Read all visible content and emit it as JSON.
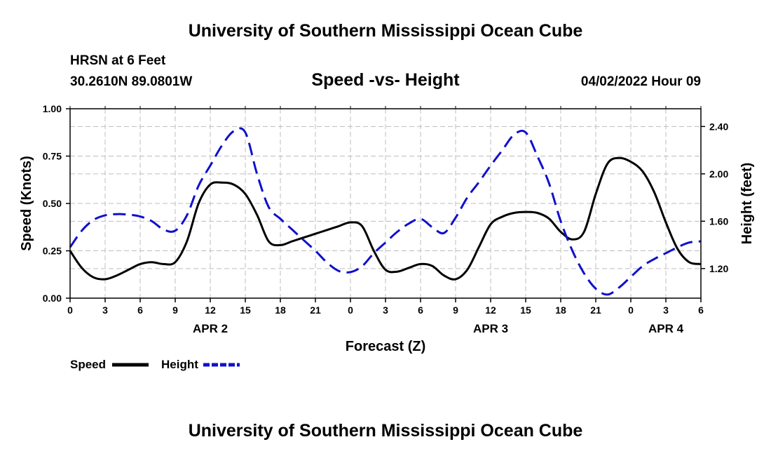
{
  "header": {
    "title": "University of Southern Mississippi Ocean Cube",
    "station": "HRSN at 6 Feet",
    "coords": "30.2610N  89.0801W",
    "datetime": "04/02/2022 Hour 09"
  },
  "footer": {
    "title": "University of Southern Mississippi Ocean Cube"
  },
  "chart_data": {
    "type": "line",
    "title": "Speed -vs- Height",
    "xlabel": "Forecast (Z)",
    "ylabel": "Speed (Knots)",
    "ylabel_right": "Height (feet)",
    "x_range": [
      0,
      54
    ],
    "ylim": [
      0,
      1
    ],
    "ylim_right": [
      0.95,
      2.55
    ],
    "grid": true,
    "x_ticks": [
      0,
      3,
      6,
      9,
      12,
      15,
      18,
      21,
      24,
      27,
      30,
      33,
      36,
      39,
      42,
      45,
      48,
      51,
      54
    ],
    "x_tick_labels": [
      "0",
      "3",
      "6",
      "9",
      "12",
      "15",
      "18",
      "21",
      "0",
      "3",
      "6",
      "9",
      "12",
      "15",
      "18",
      "21",
      "0",
      "3",
      "6"
    ],
    "y_ticks": [
      0,
      0.25,
      0.5,
      0.75,
      1.0
    ],
    "y_tick_labels": [
      "0.00",
      "0.25",
      "0.50",
      "0.75",
      "1.00"
    ],
    "y_right_ticks": [
      1.2,
      1.6,
      2.0,
      2.4
    ],
    "y_right_tick_labels": [
      "1.20",
      "1.60",
      "2.00",
      "2.40"
    ],
    "date_labels": [
      {
        "text": "APR 2",
        "x": 12
      },
      {
        "text": "APR 3",
        "x": 36
      },
      {
        "text": "APR 4",
        "x": 51
      }
    ],
    "series": [
      {
        "name": "Speed",
        "color": "#000000",
        "axis": "left",
        "style": "solid",
        "x": [
          0,
          1,
          2,
          3,
          4,
          5,
          6,
          7,
          8,
          9,
          10,
          11,
          12,
          13,
          14,
          15,
          16,
          17,
          18,
          19,
          20,
          21,
          22,
          23,
          24,
          25,
          26,
          27,
          28,
          29,
          30,
          31,
          32,
          33,
          34,
          35,
          36,
          37,
          38,
          39,
          40,
          41,
          42,
          43,
          44,
          45,
          46,
          47,
          48,
          49,
          50,
          51,
          52,
          53,
          54
        ],
        "values": [
          0.25,
          0.16,
          0.11,
          0.1,
          0.12,
          0.15,
          0.18,
          0.19,
          0.18,
          0.19,
          0.3,
          0.5,
          0.6,
          0.61,
          0.6,
          0.55,
          0.44,
          0.3,
          0.28,
          0.3,
          0.32,
          0.34,
          0.36,
          0.38,
          0.4,
          0.38,
          0.25,
          0.15,
          0.14,
          0.16,
          0.18,
          0.17,
          0.12,
          0.1,
          0.15,
          0.27,
          0.39,
          0.43,
          0.45,
          0.455,
          0.45,
          0.42,
          0.35,
          0.31,
          0.35,
          0.55,
          0.71,
          0.74,
          0.72,
          0.67,
          0.56,
          0.4,
          0.26,
          0.19,
          0.18
        ]
      },
      {
        "name": "Height",
        "color": "#1010cc",
        "axis": "right",
        "style": "dashed",
        "x": [
          0,
          1,
          2,
          3,
          4,
          5,
          6,
          7,
          8,
          9,
          10,
          11,
          12,
          13,
          14,
          15,
          16,
          17,
          18,
          19,
          20,
          21,
          22,
          23,
          24,
          25,
          26,
          27,
          28,
          29,
          30,
          31,
          32,
          33,
          34,
          35,
          36,
          37,
          38,
          39,
          40,
          41,
          42,
          43,
          44,
          45,
          46,
          47,
          48,
          49,
          50,
          51,
          52,
          53,
          54
        ],
        "values": [
          1.38,
          1.52,
          1.61,
          1.65,
          1.66,
          1.655,
          1.64,
          1.6,
          1.53,
          1.52,
          1.65,
          1.9,
          2.07,
          2.24,
          2.36,
          2.35,
          2.0,
          1.72,
          1.62,
          1.53,
          1.44,
          1.35,
          1.25,
          1.18,
          1.17,
          1.22,
          1.33,
          1.42,
          1.51,
          1.58,
          1.62,
          1.55,
          1.5,
          1.63,
          1.8,
          1.93,
          2.07,
          2.2,
          2.33,
          2.35,
          2.15,
          1.92,
          1.6,
          1.35,
          1.16,
          1.03,
          0.98,
          1.04,
          1.13,
          1.22,
          1.28,
          1.33,
          1.38,
          1.42,
          1.43
        ]
      }
    ],
    "legend": [
      {
        "label": "Speed",
        "color": "#000000",
        "style": "solid"
      },
      {
        "label": "Height",
        "color": "#1010cc",
        "style": "dashed"
      }
    ]
  }
}
